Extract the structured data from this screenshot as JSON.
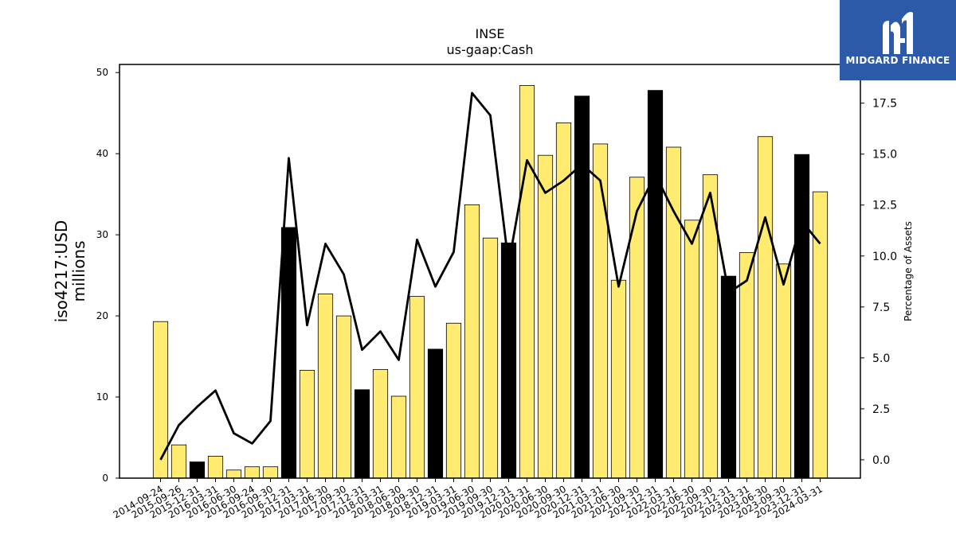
{
  "chart_data": {
    "type": "bar",
    "title": "INSE",
    "subtitle": "us-gaap:Cash",
    "ylabel": "iso4217:USD\nmillions",
    "y2label": "Percentage of Assets",
    "ylim": [
      0,
      51
    ],
    "y2lim": [
      -0.9,
      19.4
    ],
    "yticks": [
      0,
      10,
      20,
      30,
      40,
      50
    ],
    "y2ticks": [
      0.0,
      2.5,
      5.0,
      7.5,
      10.0,
      12.5,
      15.0,
      17.5
    ],
    "y2tick_labels": [
      "0.0",
      "2.5",
      "5.0",
      "7.5",
      "10.0",
      "12.5",
      "15.0",
      "17.5"
    ],
    "colors": {
      "bar": "#ffeb70",
      "highlight": "#000000",
      "line": "#000000"
    },
    "categories": [
      "2014-09-24",
      "2015-09-26",
      "2015-12-31",
      "2016-03-31",
      "2016-06-30",
      "2016-09-24",
      "2016-09-30",
      "2016-12-31",
      "2017-03-31",
      "2017-06-30",
      "2017-09-30",
      "2017-12-31",
      "2018-03-31",
      "2018-06-30",
      "2018-09-30",
      "2018-12-31",
      "2019-03-31",
      "2019-06-30",
      "2019-09-30",
      "2019-12-31",
      "2020-03-31",
      "2020-06-30",
      "2020-09-30",
      "2020-12-31",
      "2021-03-31",
      "2021-06-30",
      "2021-09-30",
      "2021-12-31",
      "2022-03-31",
      "2022-06-30",
      "2022-09-30",
      "2022-12-31",
      "2023-03-31",
      "2023-06-30",
      "2023-09-30",
      "2023-12-31",
      "2024-03-31"
    ],
    "series": [
      {
        "type": "bar",
        "values": [
          19.3,
          4.1,
          2.0,
          2.7,
          1.0,
          1.4,
          1.4,
          30.9,
          13.3,
          22.7,
          20.0,
          10.9,
          13.4,
          10.1,
          22.4,
          15.9,
          19.1,
          33.7,
          29.6,
          29.0,
          48.4,
          39.8,
          43.8,
          47.1,
          41.2,
          24.4,
          37.1,
          47.8,
          40.8,
          31.8,
          37.4,
          24.9,
          27.8,
          42.1,
          26.4,
          39.9,
          35.3
        ],
        "highlight": [
          false,
          false,
          true,
          false,
          false,
          false,
          false,
          true,
          false,
          false,
          false,
          true,
          false,
          false,
          false,
          true,
          false,
          false,
          false,
          true,
          false,
          false,
          false,
          true,
          false,
          false,
          false,
          true,
          false,
          false,
          false,
          true,
          false,
          false,
          false,
          true,
          false
        ]
      },
      {
        "type": "line",
        "axis": "y2",
        "values": [
          0.0,
          1.7,
          2.6,
          3.4,
          1.3,
          0.8,
          1.9,
          14.8,
          6.6,
          10.6,
          9.1,
          5.4,
          6.3,
          4.9,
          10.8,
          8.5,
          10.2,
          18.0,
          16.9,
          9.6,
          14.7,
          13.1,
          13.7,
          14.5,
          13.7,
          8.5,
          12.2,
          14.0,
          12.2,
          10.6,
          13.1,
          8.2,
          8.8,
          11.9,
          8.6,
          11.7,
          10.6
        ]
      }
    ]
  },
  "logo": {
    "text": "MIDGARD FINANCE"
  }
}
